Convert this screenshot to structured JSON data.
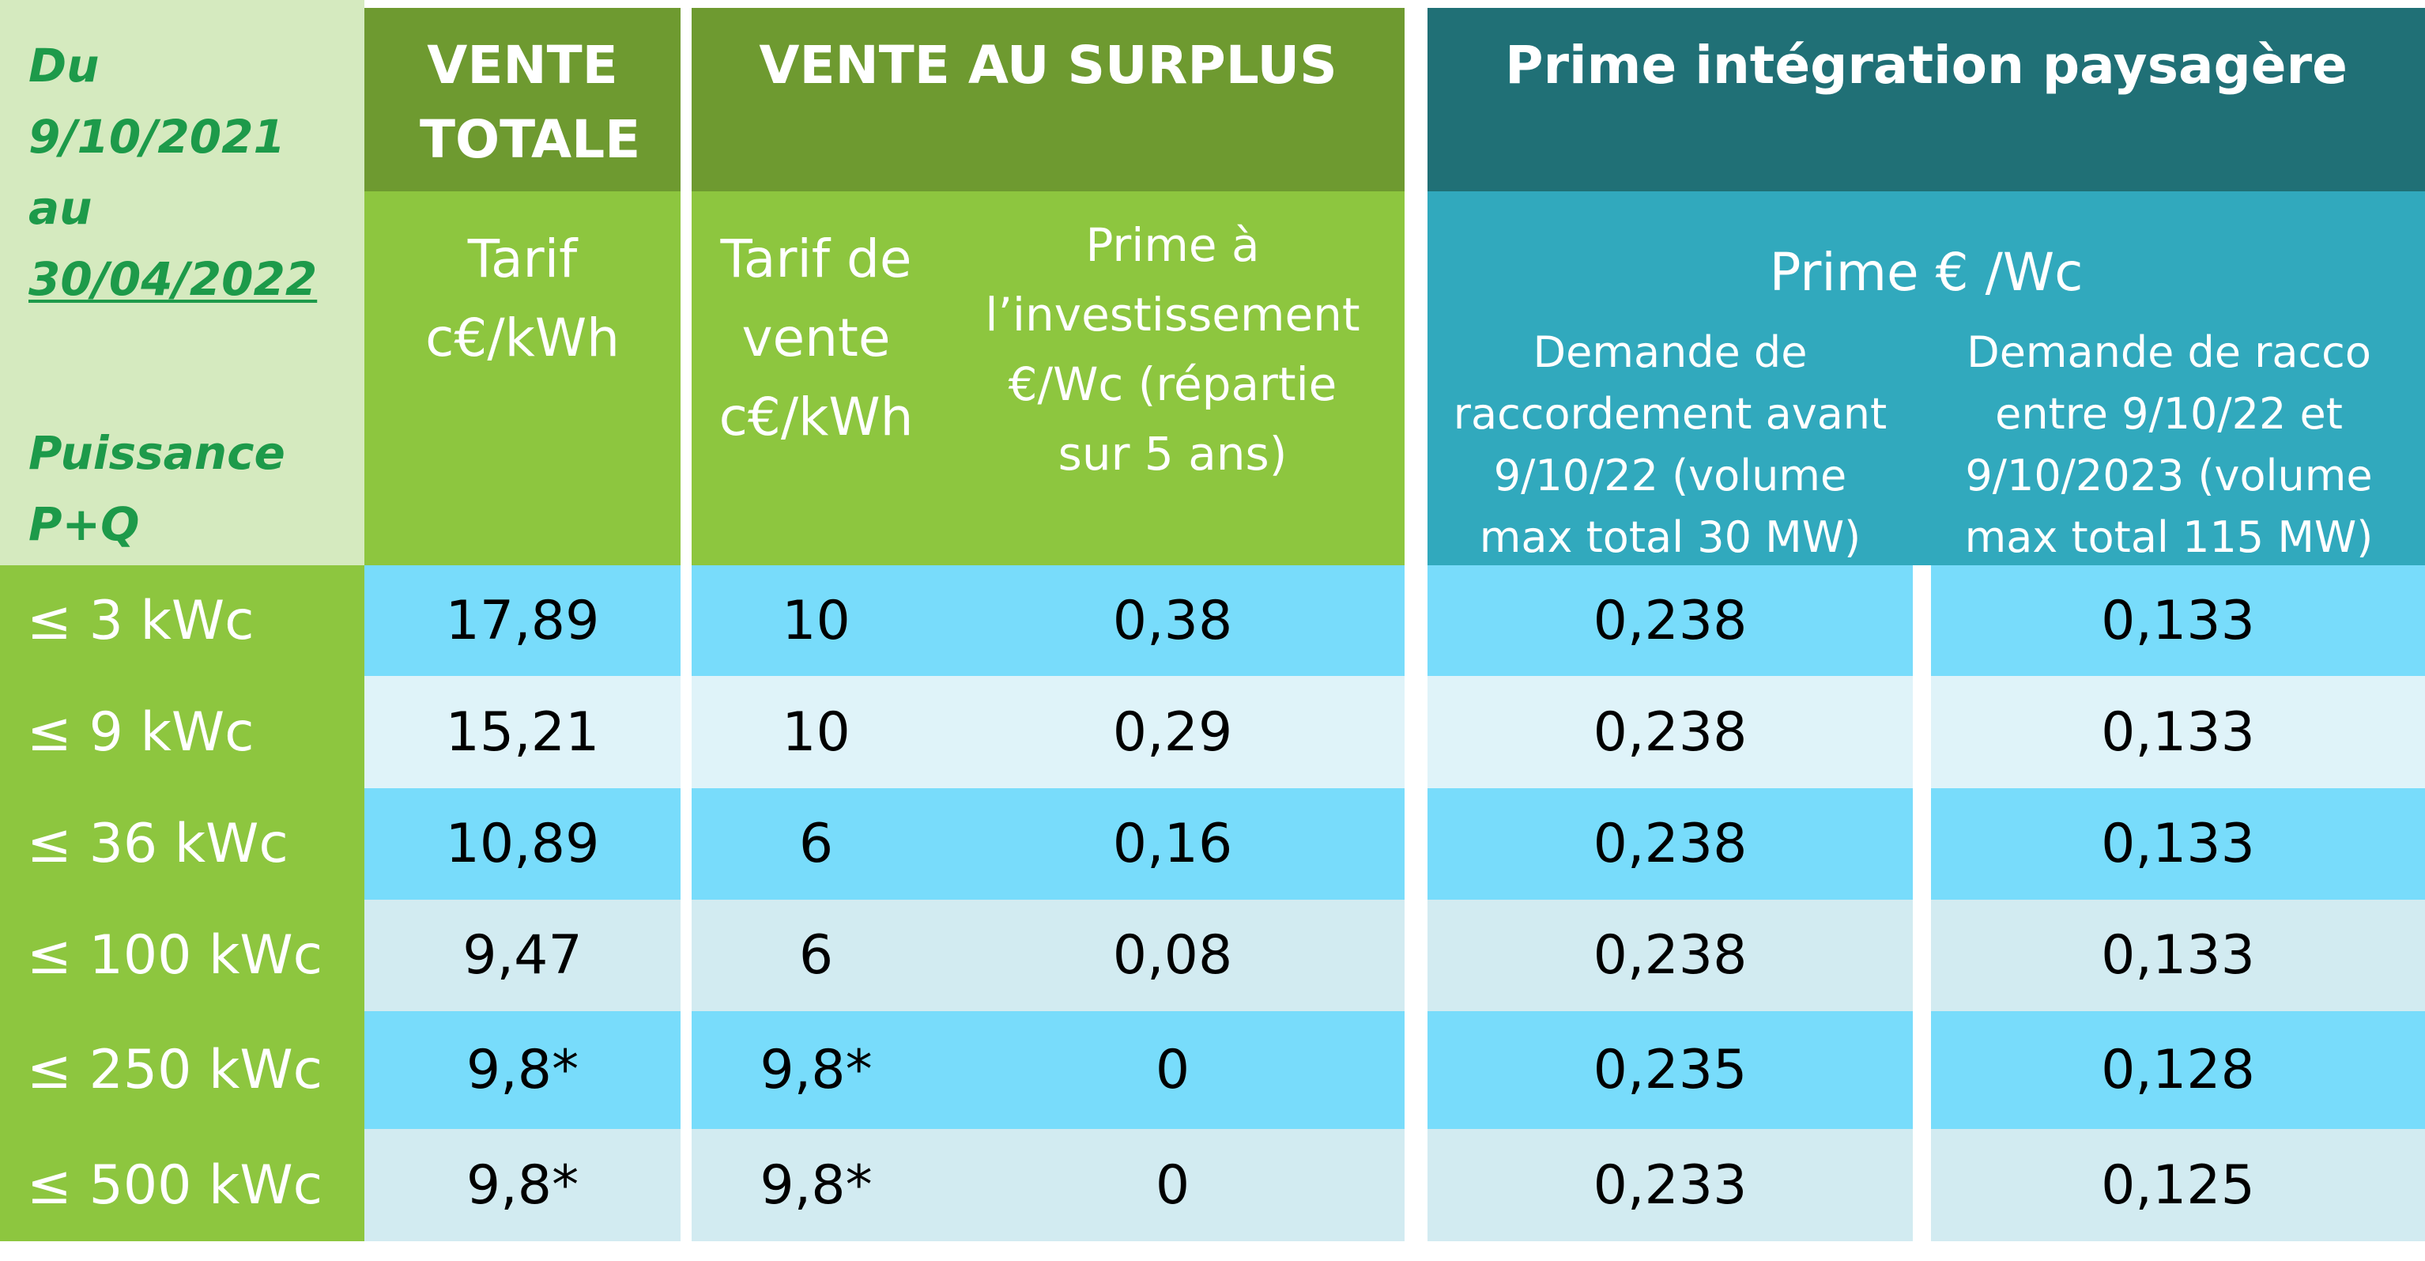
{
  "header": {
    "period_line1": "Du",
    "period_line2": "9/10/2021",
    "period_line3": "au",
    "period_line4": "30/04/2022",
    "puissance_line1": "Puissance",
    "puissance_line2": "P+Q",
    "vente_totale": "VENTE TOTALE",
    "vente_surplus": "VENTE AU SURPLUS",
    "prime_integration": "Prime intégration paysagère",
    "tarif_vt": "Tarif c€/kWh",
    "tarif_vente": "Tarif de vente c€/kWh",
    "prime_invest": "Prime à l’investissement €/Wc (répartie sur 5 ans)",
    "prime_wc": "Prime € /Wc",
    "demande_avant": "Demande de raccordement avant 9/10/22 (volume max total 30 MW)",
    "demande_entre": "Demande de racco entre 9/10/22 et 9/10/2023 (volume max total 115 MW)"
  },
  "rows": [
    {
      "power": "≤ 3 kWc",
      "tarif_vt": "17,89",
      "tarif_vente": "10",
      "prime_invest": "0,38",
      "prime_avant": "0,238",
      "prime_entre": "0,133"
    },
    {
      "power": "≤  9 kWc",
      "tarif_vt": "15,21",
      "tarif_vente": "10",
      "prime_invest": "0,29",
      "prime_avant": "0,238",
      "prime_entre": "0,133"
    },
    {
      "power": "≤  36 kWc",
      "tarif_vt": "10,89",
      "tarif_vente": "6",
      "prime_invest": "0,16",
      "prime_avant": "0,238",
      "prime_entre": "0,133"
    },
    {
      "power": "≤  100 kWc",
      "tarif_vt": "9,47",
      "tarif_vente": "6",
      "prime_invest": "0,08",
      "prime_avant": "0,238",
      "prime_entre": "0,133"
    },
    {
      "power": "≤  250 kWc",
      "tarif_vt": "9,8*",
      "tarif_vente": "9,8*",
      "prime_invest": "0",
      "prime_avant": "0,235",
      "prime_entre": "0,128"
    },
    {
      "power": "≤  500 kWc",
      "tarif_vt": "9,8*",
      "tarif_vente": "9,8*",
      "prime_invest": "0",
      "prime_avant": "0,233",
      "prime_entre": "0,125"
    }
  ]
}
